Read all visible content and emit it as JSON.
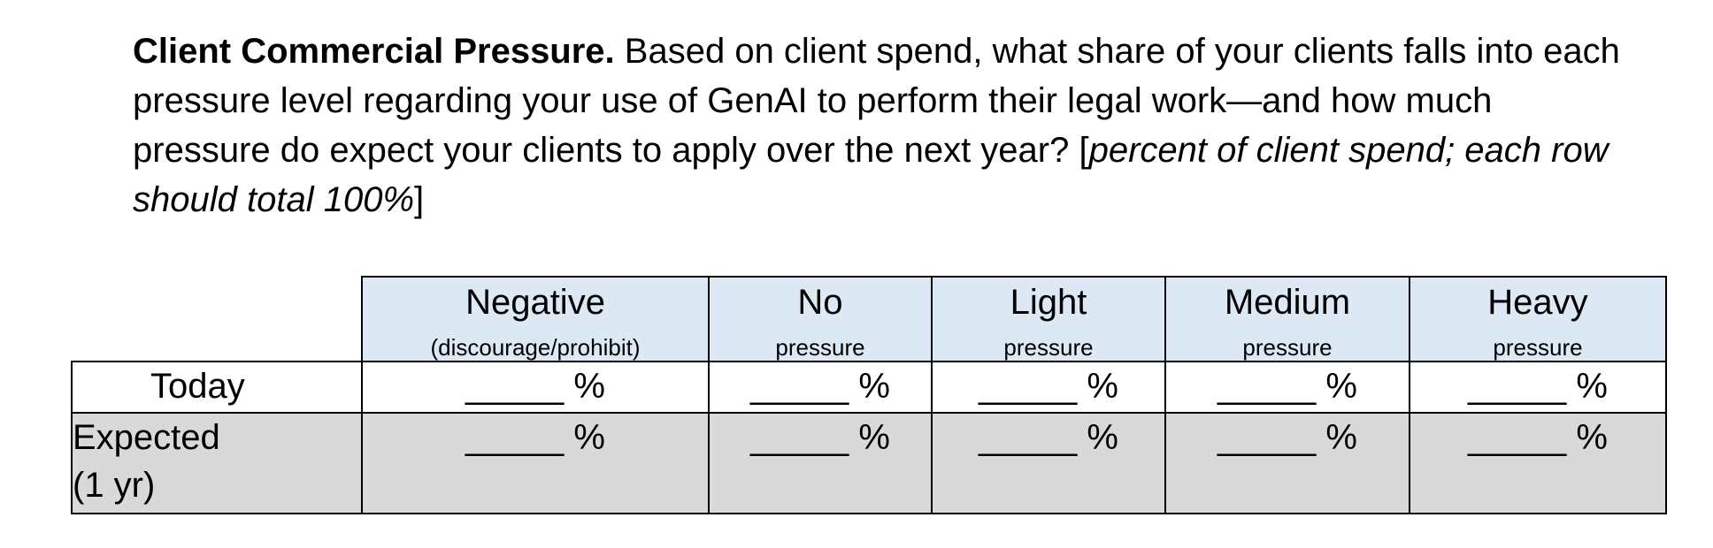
{
  "question": {
    "title": "Client Commercial Pressure.",
    "text": " Based on client spend, what share of your clients falls into each pressure level regarding your use of GenAI to perform their legal work—and how much pressure do expect your clients to apply over the next year? [",
    "instruction": "percent of client spend; each row should total 100%",
    "close": "]"
  },
  "table": {
    "columns": [
      {
        "title": "Negative",
        "subtitle": "(discourage/prohibit)"
      },
      {
        "title": "No",
        "subtitle": "pressure"
      },
      {
        "title": "Light",
        "subtitle": "pressure"
      },
      {
        "title": "Medium",
        "subtitle": "pressure"
      },
      {
        "title": "Heavy",
        "subtitle": "pressure"
      }
    ],
    "rows": [
      {
        "label": "Today",
        "label2": ""
      },
      {
        "label": "Expected",
        "label2": "(1 yr)"
      }
    ],
    "cell_value": "_____ %"
  }
}
